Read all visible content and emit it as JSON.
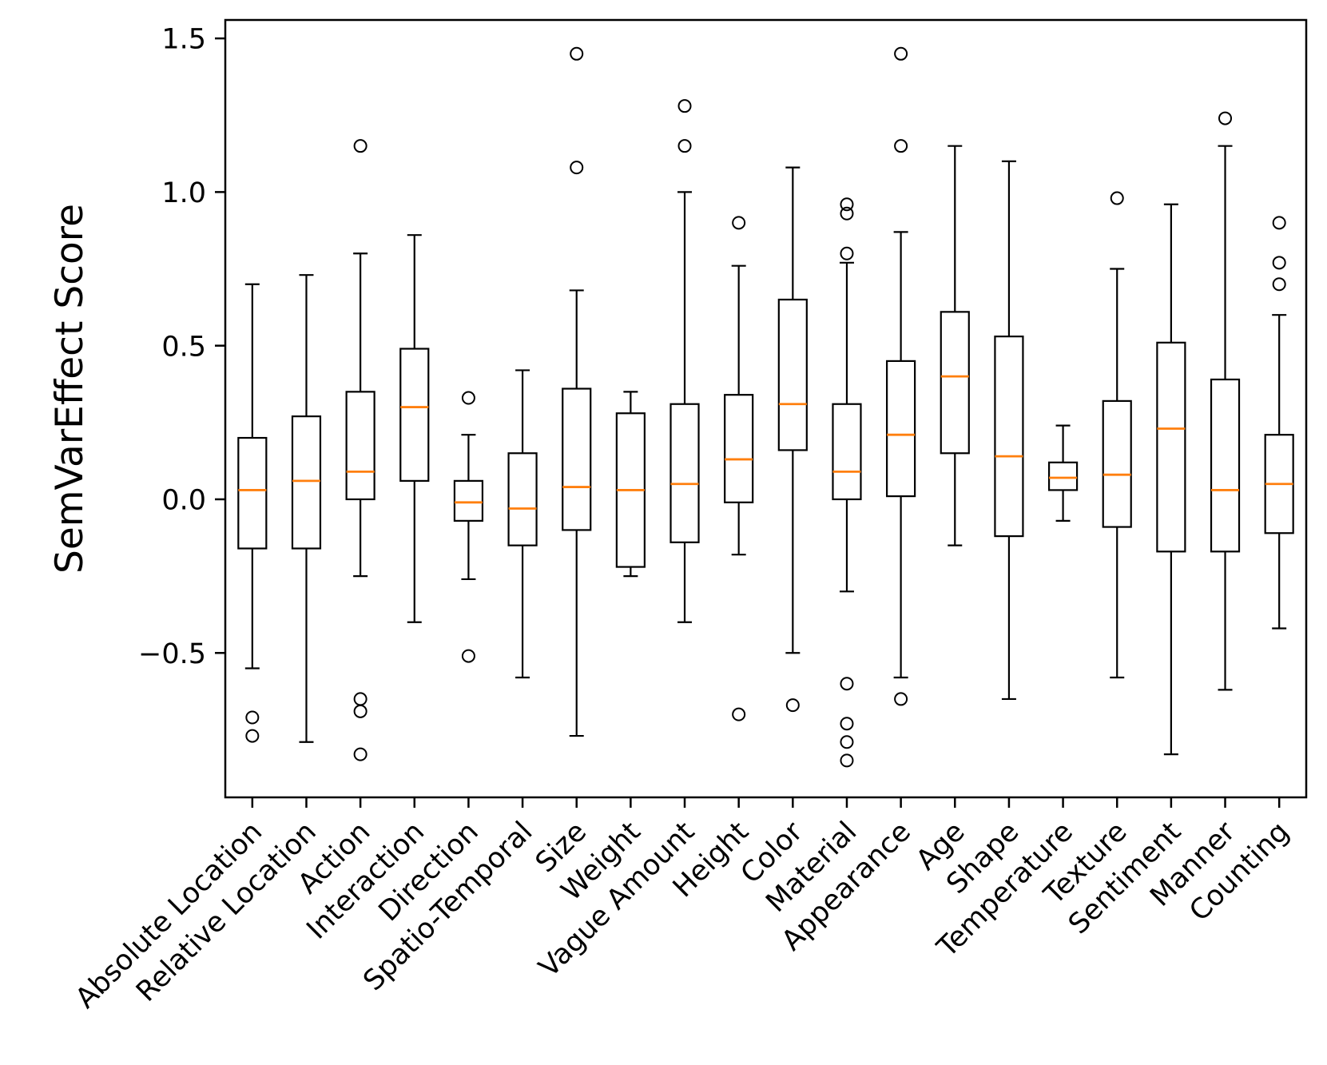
{
  "figure": {
    "ylabel": "SemVarEffect Score"
  },
  "chart_data": {
    "type": "boxplot",
    "title": "",
    "xlabel": "",
    "ylabel": "SemVarEffect Score",
    "grid": false,
    "legend": false,
    "background": "#ffffff",
    "box_color": "#000000",
    "median_color": "#ff7f0e",
    "ylim": [
      -0.97,
      1.56
    ],
    "yticks": {
      "values": [
        -0.5,
        0.0,
        0.5,
        1.0,
        1.5
      ],
      "labels": [
        "−0.5",
        "0.0",
        "0.5",
        "1.0",
        "1.5"
      ]
    },
    "categories": [
      "Absolute Location",
      "Relative Location",
      "Action",
      "Interaction",
      "Direction",
      "Spatio-Temporal",
      "Size",
      "Weight",
      "Vague Amount",
      "Height",
      "Color",
      "Material",
      "Appearance",
      "Age",
      "Shape",
      "Temperature",
      "Texture",
      "Sentiment",
      "Manner",
      "Counting"
    ],
    "boxes": [
      {
        "label": "Absolute Location",
        "whislo": -0.55,
        "q1": -0.16,
        "med": 0.03,
        "q3": 0.2,
        "whishi": 0.7,
        "fliers": [
          -0.71,
          -0.77
        ]
      },
      {
        "label": "Relative Location",
        "whislo": -0.79,
        "q1": -0.16,
        "med": 0.06,
        "q3": 0.27,
        "whishi": 0.73,
        "fliers": []
      },
      {
        "label": "Action",
        "whislo": -0.25,
        "q1": 0.0,
        "med": 0.09,
        "q3": 0.35,
        "whishi": 0.8,
        "fliers": [
          1.15,
          -0.65,
          -0.69,
          -0.83
        ]
      },
      {
        "label": "Interaction",
        "whislo": -0.4,
        "q1": 0.06,
        "med": 0.3,
        "q3": 0.49,
        "whishi": 0.86,
        "fliers": []
      },
      {
        "label": "Direction",
        "whislo": -0.26,
        "q1": -0.07,
        "med": -0.01,
        "q3": 0.06,
        "whishi": 0.21,
        "fliers": [
          0.33,
          -0.51
        ]
      },
      {
        "label": "Spatio-Temporal",
        "whislo": -0.58,
        "q1": -0.15,
        "med": -0.03,
        "q3": 0.15,
        "whishi": 0.42,
        "fliers": []
      },
      {
        "label": "Size",
        "whislo": -0.77,
        "q1": -0.1,
        "med": 0.04,
        "q3": 0.36,
        "whishi": 0.68,
        "fliers": [
          1.45,
          1.08
        ]
      },
      {
        "label": "Weight",
        "whislo": -0.25,
        "q1": -0.22,
        "med": 0.03,
        "q3": 0.28,
        "whishi": 0.35,
        "fliers": []
      },
      {
        "label": "Vague Amount",
        "whislo": -0.4,
        "q1": -0.14,
        "med": 0.05,
        "q3": 0.31,
        "whishi": 1.0,
        "fliers": [
          1.28,
          1.15
        ]
      },
      {
        "label": "Height",
        "whislo": -0.18,
        "q1": -0.01,
        "med": 0.13,
        "q3": 0.34,
        "whishi": 0.76,
        "fliers": [
          0.9,
          -0.7
        ]
      },
      {
        "label": "Color",
        "whislo": -0.5,
        "q1": 0.16,
        "med": 0.31,
        "q3": 0.65,
        "whishi": 1.08,
        "fliers": [
          -0.67
        ]
      },
      {
        "label": "Material",
        "whislo": -0.3,
        "q1": 0.0,
        "med": 0.09,
        "q3": 0.31,
        "whishi": 0.77,
        "fliers": [
          0.96,
          0.93,
          0.8,
          -0.6,
          -0.73,
          -0.79,
          -0.85
        ]
      },
      {
        "label": "Appearance",
        "whislo": -0.58,
        "q1": 0.01,
        "med": 0.21,
        "q3": 0.45,
        "whishi": 0.87,
        "fliers": [
          1.45,
          1.15,
          -0.65
        ]
      },
      {
        "label": "Age",
        "whislo": -0.15,
        "q1": 0.15,
        "med": 0.4,
        "q3": 0.61,
        "whishi": 1.15,
        "fliers": []
      },
      {
        "label": "Shape",
        "whislo": -0.65,
        "q1": -0.12,
        "med": 0.14,
        "q3": 0.53,
        "whishi": 1.1,
        "fliers": []
      },
      {
        "label": "Temperature",
        "whislo": -0.07,
        "q1": 0.03,
        "med": 0.07,
        "q3": 0.12,
        "whishi": 0.24,
        "fliers": []
      },
      {
        "label": "Texture",
        "whislo": -0.58,
        "q1": -0.09,
        "med": 0.08,
        "q3": 0.32,
        "whishi": 0.75,
        "fliers": [
          0.98
        ]
      },
      {
        "label": "Sentiment",
        "whislo": -0.83,
        "q1": -0.17,
        "med": 0.23,
        "q3": 0.51,
        "whishi": 0.96,
        "fliers": []
      },
      {
        "label": "Manner",
        "whislo": -0.62,
        "q1": -0.17,
        "med": 0.03,
        "q3": 0.39,
        "whishi": 1.15,
        "fliers": [
          1.24
        ]
      },
      {
        "label": "Counting",
        "whislo": -0.42,
        "q1": -0.11,
        "med": 0.05,
        "q3": 0.21,
        "whishi": 0.6,
        "fliers": [
          0.9,
          0.77,
          0.7
        ]
      }
    ]
  }
}
